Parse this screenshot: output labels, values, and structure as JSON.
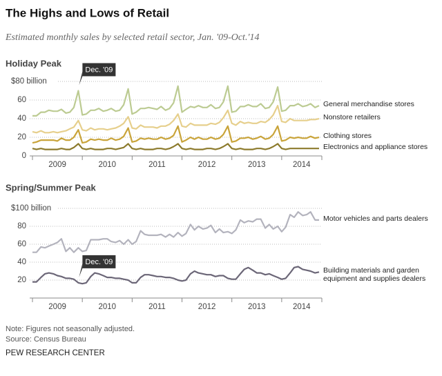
{
  "header": {
    "title": "The Highs and Lows of Retail",
    "subtitle": "Estimated monthly sales by selected retail sector, Jan. '09-Oct.'14"
  },
  "chart_data": [
    {
      "type": "line",
      "title": "Holiday Peak",
      "x": [
        2009,
        2009.08,
        2009.17,
        2009.25,
        2009.33,
        2009.42,
        2009.5,
        2009.58,
        2009.67,
        2009.75,
        2009.83,
        2009.92,
        2010,
        2010.08,
        2010.17,
        2010.25,
        2010.33,
        2010.42,
        2010.5,
        2010.58,
        2010.67,
        2010.75,
        2010.83,
        2010.92,
        2011,
        2011.08,
        2011.17,
        2011.25,
        2011.33,
        2011.42,
        2011.5,
        2011.58,
        2011.67,
        2011.75,
        2011.83,
        2011.92,
        2012,
        2012.08,
        2012.17,
        2012.25,
        2012.33,
        2012.42,
        2012.5,
        2012.58,
        2012.67,
        2012.75,
        2012.83,
        2012.92,
        2013,
        2013.08,
        2013.17,
        2013.25,
        2013.33,
        2013.42,
        2013.5,
        2013.58,
        2013.67,
        2013.75,
        2013.83,
        2013.92,
        2014,
        2014.08,
        2014.17,
        2014.25,
        2014.33,
        2014.42,
        2014.5,
        2014.58,
        2014.67,
        2014.75
      ],
      "xlim": [
        2009,
        2014.75
      ],
      "xticks": [
        {
          "value": 2009.5,
          "label": "2009"
        },
        {
          "value": 2010.5,
          "label": "2010"
        },
        {
          "value": 2011.5,
          "label": "2011"
        },
        {
          "value": 2012.5,
          "label": "2012"
        },
        {
          "value": 2013.5,
          "label": "2013"
        },
        {
          "value": 2014.4,
          "label": "2014"
        }
      ],
      "ylim": [
        0,
        80
      ],
      "yticks": [
        0,
        20,
        40,
        60,
        {
          "value": 80,
          "label": "$80 billion"
        }
      ],
      "grid": true,
      "annotations": [
        {
          "text": "Dec. '09",
          "x": 2009.92
        }
      ],
      "series": [
        {
          "name": "General merchandise stores",
          "color": "#bccb92",
          "values": [
            43,
            43,
            47,
            47,
            49,
            48,
            48,
            50,
            46,
            47,
            52,
            70,
            44,
            45,
            49,
            49,
            51,
            48,
            49,
            51,
            48,
            49,
            55,
            72,
            45,
            47,
            51,
            51,
            52,
            51,
            50,
            53,
            49,
            51,
            57,
            75,
            47,
            50,
            53,
            52,
            54,
            52,
            52,
            55,
            51,
            52,
            58,
            75,
            47,
            48,
            53,
            53,
            55,
            53,
            53,
            56,
            51,
            52,
            58,
            74,
            48,
            49,
            54,
            54,
            56,
            53,
            54,
            56,
            52,
            54
          ]
        },
        {
          "name": "Nonstore retailers",
          "color": "#e6cf8c",
          "values": [
            26,
            25,
            27,
            25,
            25,
            26,
            25,
            26,
            27,
            29,
            31,
            38,
            28,
            27,
            30,
            28,
            29,
            29,
            28,
            29,
            30,
            32,
            35,
            42,
            30,
            29,
            33,
            31,
            31,
            31,
            30,
            32,
            32,
            34,
            38,
            45,
            32,
            31,
            35,
            33,
            33,
            33,
            33,
            35,
            34,
            36,
            41,
            49,
            35,
            33,
            37,
            35,
            36,
            35,
            35,
            37,
            36,
            39,
            44,
            54,
            37,
            36,
            40,
            38,
            38,
            38,
            38,
            39,
            39,
            40
          ]
        },
        {
          "name": "Clothing stores",
          "color": "#c9a43a",
          "values": [
            14,
            15,
            17,
            17,
            17,
            17,
            16,
            19,
            17,
            17,
            20,
            28,
            14,
            15,
            18,
            17,
            18,
            17,
            17,
            19,
            17,
            18,
            21,
            30,
            15,
            16,
            19,
            18,
            19,
            18,
            18,
            20,
            18,
            19,
            22,
            32,
            15,
            17,
            20,
            18,
            20,
            18,
            18,
            20,
            18,
            19,
            23,
            32,
            15,
            16,
            19,
            19,
            20,
            18,
            19,
            21,
            18,
            19,
            23,
            32,
            16,
            17,
            20,
            19,
            20,
            19,
            19,
            21,
            19,
            20
          ]
        },
        {
          "name": "Electronics and appliance stores",
          "color": "#8c7a2c",
          "values": [
            8,
            7,
            8,
            7,
            7,
            7,
            7,
            8,
            7,
            7,
            9,
            13,
            8,
            7,
            8,
            7,
            7,
            7,
            8,
            8,
            7,
            8,
            9,
            13,
            8,
            7,
            8,
            7,
            7,
            7,
            8,
            8,
            7,
            8,
            10,
            13,
            8,
            7,
            8,
            7,
            7,
            7,
            8,
            8,
            7,
            8,
            10,
            13,
            8,
            7,
            8,
            7,
            7,
            7,
            8,
            8,
            7,
            8,
            10,
            13,
            8,
            7,
            8,
            8,
            8,
            8,
            8,
            8,
            8,
            8
          ]
        }
      ]
    },
    {
      "type": "line",
      "title": "Spring/Summer Peak",
      "x": [
        2009,
        2009.08,
        2009.17,
        2009.25,
        2009.33,
        2009.42,
        2009.5,
        2009.58,
        2009.67,
        2009.75,
        2009.83,
        2009.92,
        2010,
        2010.08,
        2010.17,
        2010.25,
        2010.33,
        2010.42,
        2010.5,
        2010.58,
        2010.67,
        2010.75,
        2010.83,
        2010.92,
        2011,
        2011.08,
        2011.17,
        2011.25,
        2011.33,
        2011.42,
        2011.5,
        2011.58,
        2011.67,
        2011.75,
        2011.83,
        2011.92,
        2012,
        2012.08,
        2012.17,
        2012.25,
        2012.33,
        2012.42,
        2012.5,
        2012.58,
        2012.67,
        2012.75,
        2012.83,
        2012.92,
        2013,
        2013.08,
        2013.17,
        2013.25,
        2013.33,
        2013.42,
        2013.5,
        2013.58,
        2013.67,
        2013.75,
        2013.83,
        2013.92,
        2014,
        2014.08,
        2014.17,
        2014.25,
        2014.33,
        2014.42,
        2014.5,
        2014.58,
        2014.67,
        2014.75
      ],
      "xlim": [
        2009,
        2014.75
      ],
      "xticks": [
        {
          "value": 2009.5,
          "label": "2009"
        },
        {
          "value": 2010.5,
          "label": "2010"
        },
        {
          "value": 2011.5,
          "label": "2011"
        },
        {
          "value": 2012.5,
          "label": "2012"
        },
        {
          "value": 2013.5,
          "label": "2013"
        },
        {
          "value": 2014.4,
          "label": "2014"
        }
      ],
      "ylim": [
        0,
        100
      ],
      "yticks": [
        20,
        40,
        60,
        80,
        {
          "value": 100,
          "label": "$100 billion"
        }
      ],
      "grid": true,
      "annotations": [
        {
          "text": "Dec. '09",
          "x": 2009.92
        }
      ],
      "series": [
        {
          "name": "Motor vehicles and parts dealers",
          "color": "#b3b3bd",
          "values": [
            51,
            51,
            57,
            56,
            58,
            60,
            62,
            66,
            52,
            56,
            51,
            56,
            52,
            53,
            65,
            65,
            65,
            66,
            66,
            63,
            62,
            64,
            60,
            65,
            60,
            63,
            75,
            71,
            70,
            70,
            70,
            71,
            68,
            71,
            68,
            73,
            69,
            72,
            82,
            76,
            80,
            77,
            78,
            81,
            73,
            77,
            73,
            74,
            72,
            76,
            87,
            84,
            86,
            85,
            88,
            88,
            78,
            82,
            77,
            80,
            74,
            79,
            93,
            90,
            96,
            92,
            93,
            96,
            87,
            87
          ]
        },
        {
          "name": "Building materials and garden equipment and supplies dealers",
          "color": "#6b6677",
          "values": [
            18,
            18,
            23,
            27,
            28,
            27,
            25,
            24,
            22,
            22,
            21,
            17,
            16,
            17,
            24,
            28,
            27,
            25,
            23,
            23,
            22,
            22,
            21,
            20,
            17,
            17,
            23,
            26,
            26,
            25,
            24,
            24,
            23,
            23,
            22,
            20,
            19,
            20,
            27,
            30,
            28,
            27,
            26,
            26,
            24,
            25,
            25,
            22,
            21,
            21,
            27,
            32,
            34,
            31,
            28,
            28,
            26,
            27,
            25,
            23,
            21,
            22,
            28,
            34,
            35,
            32,
            31,
            30,
            28,
            29
          ]
        }
      ]
    }
  ],
  "footer": {
    "note": "Note: Figures not seasonally adjusted.",
    "source": "Source: Census Bureau",
    "brand": "PEW RESEARCH CENTER"
  }
}
